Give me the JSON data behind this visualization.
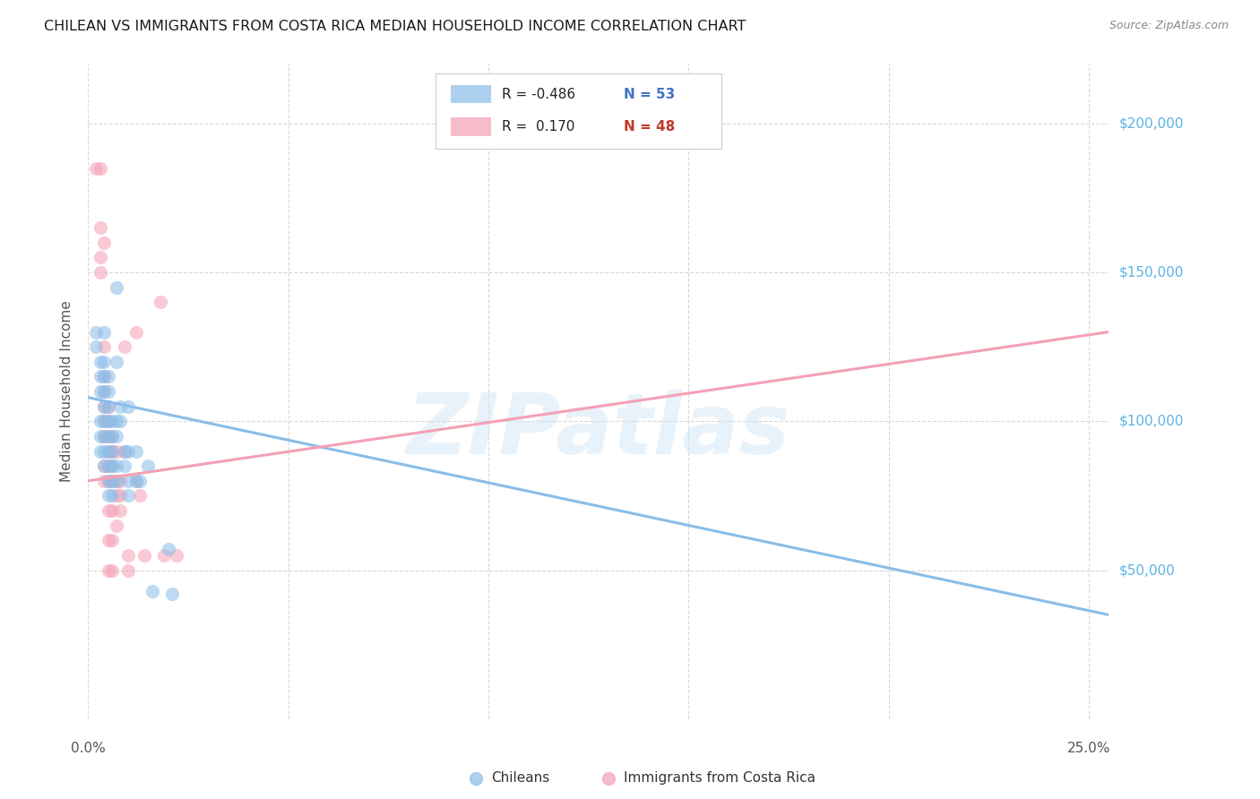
{
  "title": "CHILEAN VS IMMIGRANTS FROM COSTA RICA MEDIAN HOUSEHOLD INCOME CORRELATION CHART",
  "source": "Source: ZipAtlas.com",
  "ylabel": "Median Household Income",
  "ytick_labels": [
    "$50,000",
    "$100,000",
    "$150,000",
    "$200,000"
  ],
  "ytick_values": [
    50000,
    100000,
    150000,
    200000
  ],
  "ylim": [
    0,
    220000
  ],
  "xlim": [
    0.0,
    0.255
  ],
  "xtick_positions": [
    0.0,
    0.05,
    0.1,
    0.15,
    0.2,
    0.25
  ],
  "xtick_labels": [
    "0.0%",
    "",
    "",
    "",
    "",
    "25.0%"
  ],
  "legend_r_blue": "R = -0.486",
  "legend_n_blue": "N = 53",
  "legend_r_pink": "R =  0.170",
  "legend_n_pink": "N = 48",
  "legend_bottom": [
    "Chileans",
    "Immigrants from Costa Rica"
  ],
  "watermark": "ZIPatlas",
  "blue_color": "#89bde8",
  "pink_color": "#f5a0b5",
  "blue_scatter": [
    [
      0.002,
      130000
    ],
    [
      0.002,
      125000
    ],
    [
      0.003,
      120000
    ],
    [
      0.003,
      115000
    ],
    [
      0.003,
      110000
    ],
    [
      0.003,
      100000
    ],
    [
      0.003,
      95000
    ],
    [
      0.003,
      90000
    ],
    [
      0.004,
      130000
    ],
    [
      0.004,
      120000
    ],
    [
      0.004,
      115000
    ],
    [
      0.004,
      110000
    ],
    [
      0.004,
      105000
    ],
    [
      0.004,
      100000
    ],
    [
      0.004,
      95000
    ],
    [
      0.004,
      90000
    ],
    [
      0.004,
      85000
    ],
    [
      0.005,
      115000
    ],
    [
      0.005,
      110000
    ],
    [
      0.005,
      105000
    ],
    [
      0.005,
      100000
    ],
    [
      0.005,
      95000
    ],
    [
      0.005,
      90000
    ],
    [
      0.005,
      85000
    ],
    [
      0.005,
      80000
    ],
    [
      0.005,
      75000
    ],
    [
      0.006,
      100000
    ],
    [
      0.006,
      95000
    ],
    [
      0.006,
      90000
    ],
    [
      0.006,
      85000
    ],
    [
      0.006,
      80000
    ],
    [
      0.006,
      75000
    ],
    [
      0.007,
      145000
    ],
    [
      0.007,
      120000
    ],
    [
      0.007,
      100000
    ],
    [
      0.007,
      95000
    ],
    [
      0.007,
      85000
    ],
    [
      0.007,
      80000
    ],
    [
      0.008,
      105000
    ],
    [
      0.008,
      100000
    ],
    [
      0.009,
      90000
    ],
    [
      0.009,
      85000
    ],
    [
      0.01,
      105000
    ],
    [
      0.01,
      90000
    ],
    [
      0.01,
      80000
    ],
    [
      0.01,
      75000
    ],
    [
      0.012,
      90000
    ],
    [
      0.012,
      80000
    ],
    [
      0.013,
      80000
    ],
    [
      0.015,
      85000
    ],
    [
      0.016,
      43000
    ],
    [
      0.02,
      57000
    ],
    [
      0.021,
      42000
    ]
  ],
  "pink_scatter": [
    [
      0.002,
      185000
    ],
    [
      0.003,
      185000
    ],
    [
      0.003,
      165000
    ],
    [
      0.003,
      155000
    ],
    [
      0.003,
      150000
    ],
    [
      0.004,
      160000
    ],
    [
      0.004,
      125000
    ],
    [
      0.004,
      115000
    ],
    [
      0.004,
      110000
    ],
    [
      0.004,
      105000
    ],
    [
      0.004,
      100000
    ],
    [
      0.004,
      95000
    ],
    [
      0.004,
      85000
    ],
    [
      0.004,
      80000
    ],
    [
      0.005,
      105000
    ],
    [
      0.005,
      100000
    ],
    [
      0.005,
      95000
    ],
    [
      0.005,
      90000
    ],
    [
      0.005,
      85000
    ],
    [
      0.005,
      80000
    ],
    [
      0.005,
      70000
    ],
    [
      0.005,
      60000
    ],
    [
      0.005,
      50000
    ],
    [
      0.006,
      95000
    ],
    [
      0.006,
      90000
    ],
    [
      0.006,
      85000
    ],
    [
      0.006,
      80000
    ],
    [
      0.006,
      70000
    ],
    [
      0.006,
      60000
    ],
    [
      0.006,
      50000
    ],
    [
      0.007,
      90000
    ],
    [
      0.007,
      80000
    ],
    [
      0.007,
      75000
    ],
    [
      0.007,
      65000
    ],
    [
      0.008,
      80000
    ],
    [
      0.008,
      75000
    ],
    [
      0.008,
      70000
    ],
    [
      0.009,
      125000
    ],
    [
      0.009,
      90000
    ],
    [
      0.01,
      55000
    ],
    [
      0.01,
      50000
    ],
    [
      0.012,
      130000
    ],
    [
      0.012,
      80000
    ],
    [
      0.013,
      75000
    ],
    [
      0.014,
      55000
    ],
    [
      0.018,
      140000
    ],
    [
      0.019,
      55000
    ],
    [
      0.022,
      55000
    ]
  ],
  "blue_line_x": [
    0.0,
    0.255
  ],
  "blue_line_y": [
    108000,
    35000
  ],
  "pink_line_x": [
    0.0,
    0.255
  ],
  "pink_line_y": [
    80000,
    130000
  ],
  "background_color": "#ffffff",
  "grid_color": "#d8d8d8",
  "right_label_color": "#5ab4e5",
  "marker_size": 120,
  "marker_alpha": 0.55,
  "line_width": 2.2
}
